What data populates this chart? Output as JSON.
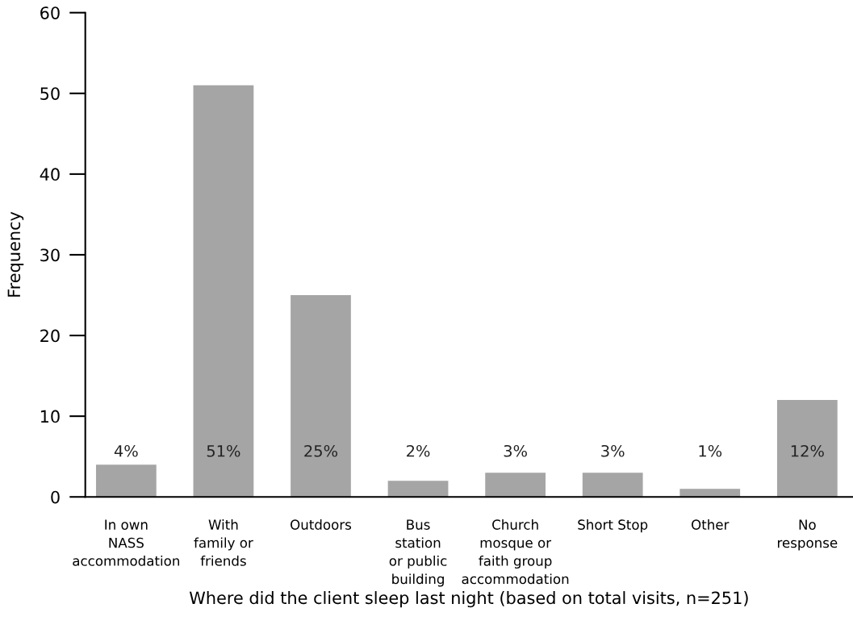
{
  "chart_data": {
    "type": "bar",
    "xlabel": "Where did the client sleep last night (based on total visits, n=251)",
    "ylabel": "Frequency",
    "categories": [
      "In own\nNASS\naccommodation",
      "With\nfamily or\nfriends",
      "Outdoors",
      "Bus\nstation\nor public\nbuilding",
      "Church\nmosque or\nfaith group\naccommodation",
      "Short Stop",
      "Other",
      "No\nresponse"
    ],
    "values": [
      4,
      51,
      25,
      2,
      3,
      3,
      1,
      12
    ],
    "value_labels": [
      "4%",
      "51%",
      "25%",
      "2%",
      "3%",
      "3%",
      "1%",
      "12%"
    ],
    "color": "#a5a5a5",
    "ylim": [
      0,
      60
    ],
    "yticks": [
      0,
      10,
      20,
      30,
      40,
      50,
      60
    ],
    "grid": false
  }
}
